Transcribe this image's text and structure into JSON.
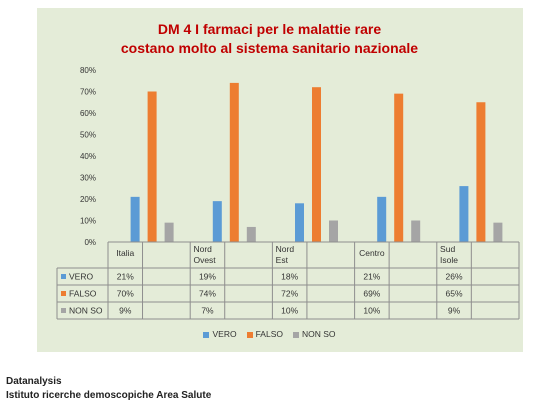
{
  "chart_data": {
    "type": "bar",
    "title_line1": "DM 4 I farmaci per le malattie rare",
    "title_line2": "costano molto al sistema sanitario nazionale",
    "categories": [
      "Italia",
      "Nord Ovest",
      "Nord Est",
      "Centro",
      "Sud Isole"
    ],
    "series": [
      {
        "name": "VERO",
        "values": [
          21,
          19,
          18,
          21,
          26
        ],
        "labels": [
          "21%",
          "19%",
          "18%",
          "21%",
          "26%"
        ]
      },
      {
        "name": "FALSO",
        "values": [
          70,
          74,
          72,
          69,
          65
        ],
        "labels": [
          "70%",
          "74%",
          "72%",
          "69%",
          "65%"
        ]
      },
      {
        "name": "NON SO",
        "values": [
          9,
          7,
          10,
          10,
          9
        ],
        "labels": [
          "9%",
          "7%",
          "10%",
          "10%",
          "9%"
        ]
      }
    ],
    "colors": {
      "VERO": "#5b9bd5",
      "FALSO": "#ed7d31",
      "NON SO": "#a5a5a5"
    },
    "ylim": [
      0,
      80
    ],
    "yticks": [
      "0%",
      "10%",
      "20%",
      "30%",
      "40%",
      "50%",
      "60%",
      "70%",
      "80%"
    ],
    "grid": false,
    "legend": "bottom",
    "data_table": true
  },
  "footer": {
    "line1": "Datanalysis",
    "line2": "Istituto ricerche demoscopiche Area Salute"
  }
}
